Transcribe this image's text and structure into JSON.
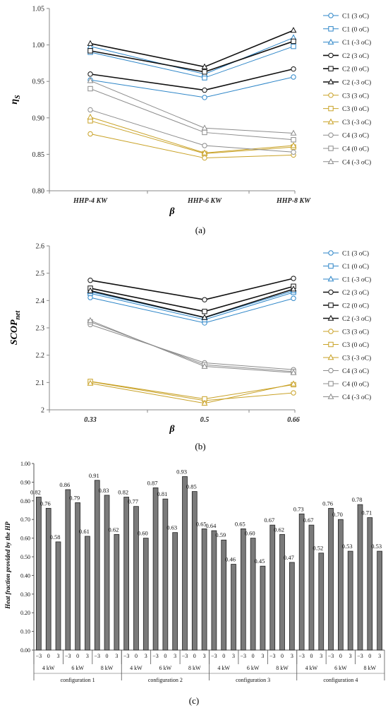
{
  "chart_data": [
    {
      "type": "line",
      "panel_label": "(a)",
      "categories": [
        "HHP-4 KW",
        "HHP-6 KW",
        "HHP-8 KW"
      ],
      "xlabel": "β",
      "ylabel": "ηS",
      "ylabel_main": "η",
      "ylabel_sub": "S",
      "ylim": [
        0.8,
        1.05
      ],
      "yticks": [
        "0.80",
        "0.85",
        "0.90",
        "0.95",
        "1.00",
        "1.05"
      ],
      "legend_position": "right",
      "series": [
        {
          "name": "C1 (3 oC)",
          "values": [
            0.952,
            0.928,
            0.956
          ],
          "color": "#2E86C8",
          "marker": "circle",
          "width": 1
        },
        {
          "name": "C1 (0 oC)",
          "values": [
            0.99,
            0.955,
            0.998
          ],
          "color": "#2E86C8",
          "marker": "square",
          "width": 1
        },
        {
          "name": "C1 (-3 oC)",
          "values": [
            0.998,
            0.96,
            1.01
          ],
          "color": "#2E86C8",
          "marker": "triangle",
          "width": 1
        },
        {
          "name": "C2 (3 oC)",
          "values": [
            0.96,
            0.938,
            0.967
          ],
          "color": "#111111",
          "marker": "circle",
          "width": 1.6
        },
        {
          "name": "C2 (0 oC)",
          "values": [
            0.992,
            0.963,
            1.005
          ],
          "color": "#111111",
          "marker": "square",
          "width": 1.6
        },
        {
          "name": "C2 (-3 oC)",
          "values": [
            1.002,
            0.97,
            1.02
          ],
          "color": "#111111",
          "marker": "triangle",
          "width": 1.6
        },
        {
          "name": "C3 (3 oC)",
          "values": [
            0.878,
            0.845,
            0.849
          ],
          "color": "#C9A227",
          "marker": "circle",
          "width": 1
        },
        {
          "name": "C3 (0 oC)",
          "values": [
            0.896,
            0.851,
            0.86
          ],
          "color": "#C9A227",
          "marker": "square",
          "width": 1
        },
        {
          "name": "C3 (-3 oC)",
          "values": [
            0.901,
            0.852,
            0.862
          ],
          "color": "#C9A227",
          "marker": "triangle",
          "width": 1
        },
        {
          "name": "C4 (3 oC)",
          "values": [
            0.911,
            0.862,
            0.853
          ],
          "color": "#8C8C8C",
          "marker": "circle",
          "width": 1
        },
        {
          "name": "C4 (0 oC)",
          "values": [
            0.94,
            0.88,
            0.87
          ],
          "color": "#8C8C8C",
          "marker": "square",
          "width": 1
        },
        {
          "name": "C4 (-3 oC)",
          "values": [
            0.951,
            0.886,
            0.879
          ],
          "color": "#8C8C8C",
          "marker": "triangle",
          "width": 1
        }
      ]
    },
    {
      "type": "line",
      "panel_label": "(b)",
      "categories": [
        "0.33",
        "0.5",
        "0.66"
      ],
      "xlabel": "β",
      "ylabel": "SCOPnet",
      "ylabel_main": "SCOP",
      "ylabel_sub": "net",
      "ylim": [
        2.0,
        2.6
      ],
      "yticks": [
        "2",
        "2.1",
        "2.2",
        "2.3",
        "2.4",
        "2.5",
        "2.6"
      ],
      "legend_position": "right",
      "series": [
        {
          "name": "C1 (3 oC)",
          "values": [
            2.411,
            2.318,
            2.408
          ],
          "color": "#2E86C8",
          "marker": "circle",
          "width": 1
        },
        {
          "name": "C1 (0 oC)",
          "values": [
            2.426,
            2.33,
            2.43
          ],
          "color": "#2E86C8",
          "marker": "square",
          "width": 1
        },
        {
          "name": "C1 (-3 oC)",
          "values": [
            2.432,
            2.337,
            2.436
          ],
          "color": "#2E86C8",
          "marker": "triangle",
          "width": 1
        },
        {
          "name": "C2 (3 oC)",
          "values": [
            2.474,
            2.403,
            2.481
          ],
          "color": "#111111",
          "marker": "circle",
          "width": 1.6
        },
        {
          "name": "C2 (0 oC)",
          "values": [
            2.445,
            2.36,
            2.452
          ],
          "color": "#111111",
          "marker": "square",
          "width": 1.6
        },
        {
          "name": "C2 (-3 oC)",
          "values": [
            2.436,
            2.338,
            2.442
          ],
          "color": "#111111",
          "marker": "triangle",
          "width": 1.6
        },
        {
          "name": "C3 (3 oC)",
          "values": [
            2.103,
            2.034,
            2.062
          ],
          "color": "#C9A227",
          "marker": "circle",
          "width": 1
        },
        {
          "name": "C3 (0 oC)",
          "values": [
            2.104,
            2.04,
            2.092
          ],
          "color": "#C9A227",
          "marker": "square",
          "width": 1
        },
        {
          "name": "C3 (-3 oC)",
          "values": [
            2.097,
            2.024,
            2.095
          ],
          "color": "#C9A227",
          "marker": "triangle",
          "width": 1
        },
        {
          "name": "C4 (3 oC)",
          "values": [
            2.312,
            2.172,
            2.147
          ],
          "color": "#8C8C8C",
          "marker": "circle",
          "width": 1
        },
        {
          "name": "C4 (0 oC)",
          "values": [
            2.322,
            2.165,
            2.14
          ],
          "color": "#8C8C8C",
          "marker": "square",
          "width": 1
        },
        {
          "name": "C4 (-3 oC)",
          "values": [
            2.327,
            2.159,
            2.136
          ],
          "color": "#8C8C8C",
          "marker": "triangle",
          "width": 1
        }
      ]
    },
    {
      "type": "bar",
      "panel_label": "(c)",
      "ylabel": "Heat fraction provided by the HP",
      "ylim": [
        0.0,
        1.0
      ],
      "yticks": [
        "0.00",
        "0.10",
        "0.20",
        "0.30",
        "0.40",
        "0.50",
        "0.60",
        "0.70",
        "0.80",
        "0.90",
        "1.00"
      ],
      "bar_color": "#7A7A7A",
      "temperatures": [
        "−3",
        "0",
        "3"
      ],
      "configurations": [
        {
          "name": "configuration 1",
          "groups": [
            {
              "label": "4 kW",
              "values": [
                0.82,
                0.76,
                0.58
              ],
              "labels": [
                "0.82",
                "0.76",
                "0.58"
              ]
            },
            {
              "label": "6 kW",
              "values": [
                0.86,
                0.79,
                0.61
              ],
              "labels": [
                "0.86",
                "0.79",
                "0.61"
              ]
            },
            {
              "label": "8 kW",
              "values": [
                0.91,
                0.83,
                0.62
              ],
              "labels": [
                "0.91",
                "0.83",
                "0.62"
              ]
            }
          ]
        },
        {
          "name": "configuration 2",
          "groups": [
            {
              "label": "4 kW",
              "values": [
                0.82,
                0.77,
                0.6
              ],
              "labels": [
                "0.82",
                "0.77",
                "0.60"
              ]
            },
            {
              "label": "6 kW",
              "values": [
                0.87,
                0.81,
                0.63
              ],
              "labels": [
                "0.87",
                "0.81",
                "0.63"
              ]
            },
            {
              "label": "8 kW",
              "values": [
                0.93,
                0.85,
                0.65
              ],
              "labels": [
                "0.93",
                "0.85",
                "0.65"
              ]
            }
          ]
        },
        {
          "name": "configuration 3",
          "groups": [
            {
              "label": "4 kW",
              "values": [
                0.64,
                0.59,
                0.46
              ],
              "labels": [
                "0.64",
                "0.59",
                "0.46"
              ]
            },
            {
              "label": "6 kW",
              "values": [
                0.65,
                0.6,
                0.45
              ],
              "labels": [
                "0.65",
                "0.60",
                "0.45"
              ]
            },
            {
              "label": "8 kW",
              "values": [
                0.67,
                0.62,
                0.47
              ],
              "labels": [
                "0.67",
                "0.62",
                "0.47"
              ]
            }
          ]
        },
        {
          "name": "configuration 4",
          "groups": [
            {
              "label": "4 kW",
              "values": [
                0.73,
                0.67,
                0.52
              ],
              "labels": [
                "0.73",
                "0.67",
                "0.52"
              ]
            },
            {
              "label": "6 kW",
              "values": [
                0.76,
                0.7,
                0.53
              ],
              "labels": [
                "0.76",
                "0.70",
                "0.53"
              ]
            },
            {
              "label": "8 kW",
              "values": [
                0.78,
                0.71,
                0.53
              ],
              "labels": [
                "0.78",
                "0.71",
                "0.53"
              ]
            }
          ]
        }
      ]
    }
  ]
}
